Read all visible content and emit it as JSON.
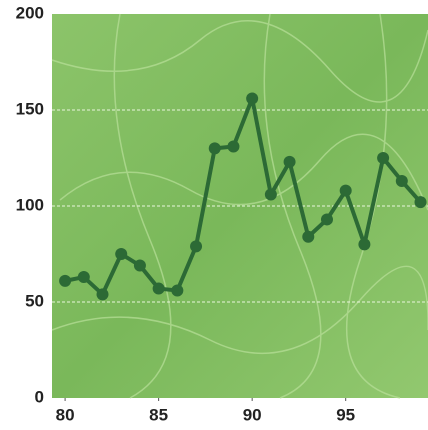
{
  "chart_data": {
    "type": "line",
    "x": [
      80,
      81,
      82,
      83,
      84,
      85,
      86,
      87,
      88,
      89,
      90,
      91,
      92,
      93,
      94,
      95,
      96,
      97,
      98,
      99
    ],
    "series": [
      {
        "color": "#2c6a35",
        "values": [
          61,
          63,
          54,
          75,
          69,
          57,
          56,
          79,
          130,
          131,
          156,
          106,
          123,
          84,
          93,
          108,
          80,
          125,
          113,
          102
        ]
      }
    ],
    "xlim": [
      79.3,
      99.4
    ],
    "xticks": [
      80,
      85,
      90,
      95
    ],
    "ylim": [
      0,
      200
    ],
    "yticks": [
      0,
      50,
      100,
      150,
      200
    ],
    "grid": true
  }
}
